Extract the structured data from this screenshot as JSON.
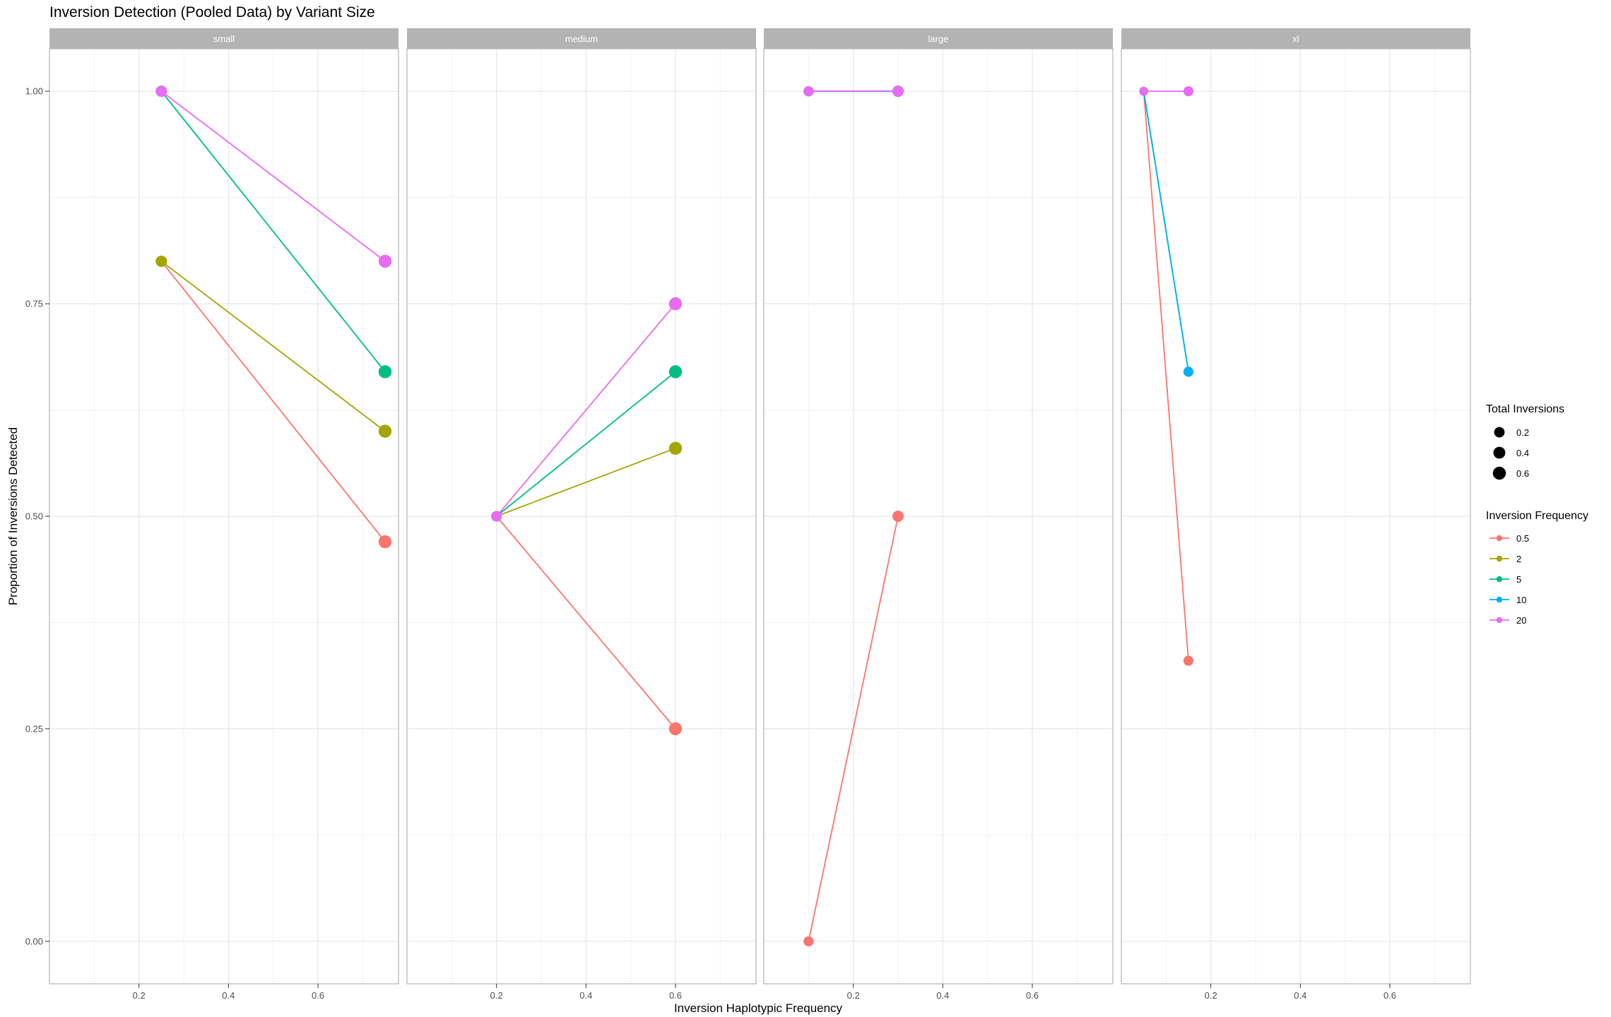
{
  "chart_data": {
    "type": "line",
    "title": "Inversion Detection (Pooled Data) by Variant Size",
    "xlabel": "Inversion Haplotypic Frequency",
    "ylabel": "Proportion of Inversions Detected",
    "xlim": [
      0,
      0.78
    ],
    "ylim": [
      -0.05,
      1.05
    ],
    "x_ticks": [
      0.2,
      0.4,
      0.6
    ],
    "x_tick_labels": [
      "0.2",
      "0.4",
      "0.6"
    ],
    "y_ticks": [
      0,
      0.25,
      0.5,
      0.75,
      1
    ],
    "y_tick_labels": [
      "0.00",
      "0.25",
      "0.50",
      "0.75",
      "1.00"
    ],
    "grid": true,
    "legend_position": "right",
    "size_legend": {
      "title": "Total Inversions",
      "entries": [
        {
          "label": "0.2",
          "value": 0.2
        },
        {
          "label": "0.4",
          "value": 0.4
        },
        {
          "label": "0.6",
          "value": 0.6
        }
      ]
    },
    "color_legend": {
      "title": "Inversion Frequency",
      "entries": [
        {
          "label": "0.5",
          "color": "#F8766D"
        },
        {
          "label": "2",
          "color": "#A3A500"
        },
        {
          "label": "5",
          "color": "#00BF7D"
        },
        {
          "label": "10",
          "color": "#00B0F6"
        },
        {
          "label": "20",
          "color": "#E76BF3"
        }
      ]
    },
    "panels": [
      {
        "label": "small",
        "series": [
          {
            "freq": "0.5",
            "points": [
              {
                "x": 0.25,
                "y": 0.8,
                "size": 0.3
              },
              {
                "x": 0.75,
                "y": 0.47,
                "size": 0.6
              }
            ]
          },
          {
            "freq": "2",
            "points": [
              {
                "x": 0.25,
                "y": 0.8,
                "size": 0.3
              },
              {
                "x": 0.75,
                "y": 0.6,
                "size": 0.6
              }
            ]
          },
          {
            "freq": "5",
            "points": [
              {
                "x": 0.25,
                "y": 1.0,
                "size": 0.3
              },
              {
                "x": 0.75,
                "y": 0.67,
                "size": 0.6
              }
            ]
          },
          {
            "freq": "20",
            "points": [
              {
                "x": 0.25,
                "y": 1.0,
                "size": 0.3
              },
              {
                "x": 0.75,
                "y": 0.8,
                "size": 0.6
              }
            ]
          }
        ]
      },
      {
        "label": "medium",
        "series": [
          {
            "freq": "0.5",
            "points": [
              {
                "x": 0.2,
                "y": 0.5,
                "size": 0.2
              },
              {
                "x": 0.6,
                "y": 0.25,
                "size": 0.6
              }
            ]
          },
          {
            "freq": "2",
            "points": [
              {
                "x": 0.2,
                "y": 0.5,
                "size": 0.2
              },
              {
                "x": 0.6,
                "y": 0.58,
                "size": 0.6
              }
            ]
          },
          {
            "freq": "5",
            "points": [
              {
                "x": 0.2,
                "y": 0.5,
                "size": 0.2
              },
              {
                "x": 0.6,
                "y": 0.67,
                "size": 0.6
              }
            ]
          },
          {
            "freq": "20",
            "points": [
              {
                "x": 0.2,
                "y": 0.5,
                "size": 0.2
              },
              {
                "x": 0.6,
                "y": 0.75,
                "size": 0.6
              }
            ]
          }
        ]
      },
      {
        "label": "large",
        "series": [
          {
            "freq": "0.5",
            "points": [
              {
                "x": 0.1,
                "y": 0.0,
                "size": 0.15
              },
              {
                "x": 0.3,
                "y": 0.5,
                "size": 0.3
              }
            ]
          },
          {
            "freq": "2",
            "points": [
              {
                "x": 0.1,
                "y": 1.0,
                "size": 0.15
              },
              {
                "x": 0.3,
                "y": 1.0,
                "size": 0.3
              }
            ]
          },
          {
            "freq": "5",
            "points": [
              {
                "x": 0.1,
                "y": 1.0,
                "size": 0.15
              },
              {
                "x": 0.3,
                "y": 1.0,
                "size": 0.3
              }
            ]
          },
          {
            "freq": "10",
            "points": [
              {
                "x": 0.1,
                "y": 1.0,
                "size": 0.15
              },
              {
                "x": 0.3,
                "y": 1.0,
                "size": 0.3
              }
            ]
          },
          {
            "freq": "20",
            "points": [
              {
                "x": 0.1,
                "y": 1.0,
                "size": 0.15
              },
              {
                "x": 0.3,
                "y": 1.0,
                "size": 0.3
              }
            ]
          }
        ]
      },
      {
        "label": "xl",
        "series": [
          {
            "freq": "0.5",
            "points": [
              {
                "x": 0.05,
                "y": 1.0,
                "size": 0.05
              },
              {
                "x": 0.15,
                "y": 0.33,
                "size": 0.15
              }
            ]
          },
          {
            "freq": "5",
            "points": [
              {
                "x": 0.05,
                "y": 1.0,
                "size": 0.05
              },
              {
                "x": 0.15,
                "y": 0.67,
                "size": 0.15
              }
            ]
          },
          {
            "freq": "10",
            "points": [
              {
                "x": 0.05,
                "y": 1.0,
                "size": 0.05
              },
              {
                "x": 0.15,
                "y": 0.67,
                "size": 0.15
              }
            ]
          },
          {
            "freq": "20",
            "points": [
              {
                "x": 0.05,
                "y": 1.0,
                "size": 0.05
              },
              {
                "x": 0.15,
                "y": 1.0,
                "size": 0.15
              }
            ]
          }
        ]
      }
    ]
  }
}
